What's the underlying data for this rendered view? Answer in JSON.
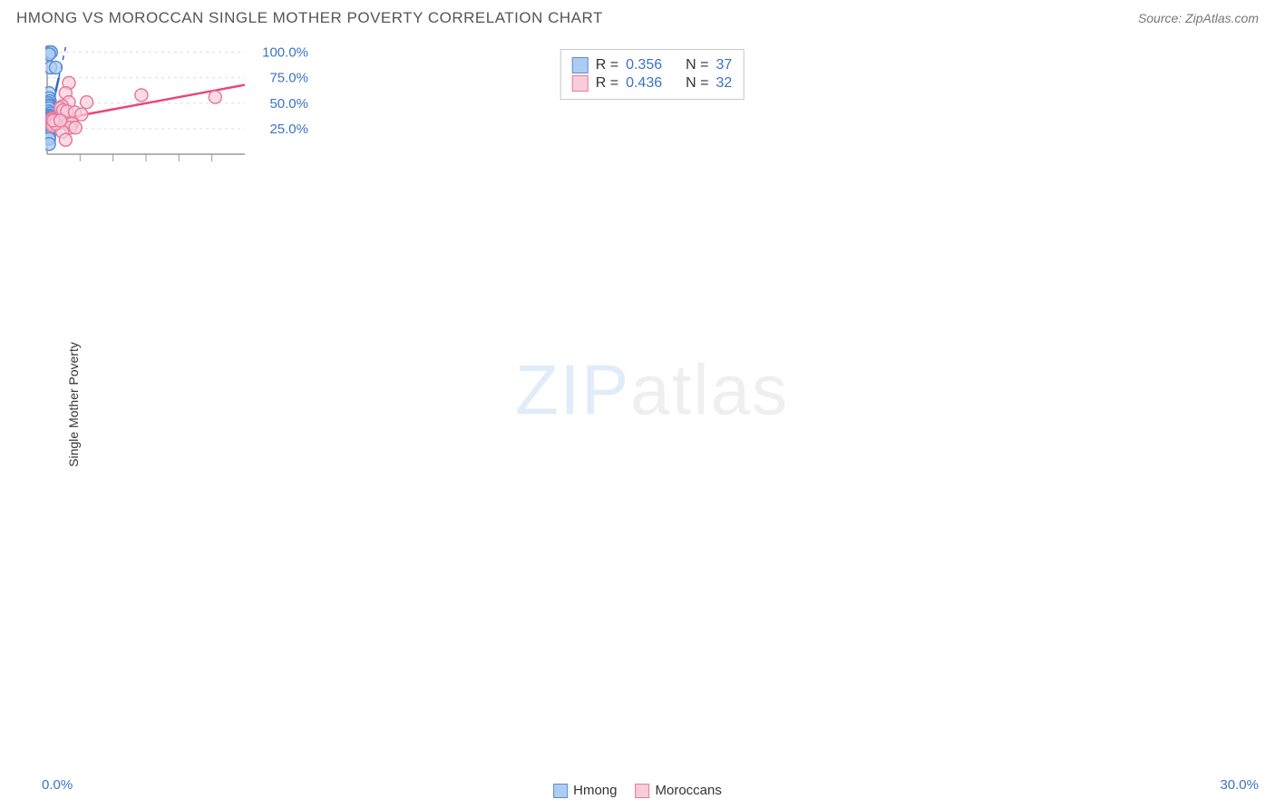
{
  "header": {
    "title": "HMONG VS MOROCCAN SINGLE MOTHER POVERTY CORRELATION CHART",
    "source": "Source: ZipAtlas.com"
  },
  "chart": {
    "type": "scatter",
    "ylabel": "Single Mother Poverty",
    "watermark_main": "ZIP",
    "watermark_sub": "atlas",
    "background_color": "#ffffff",
    "grid_color": "#dcdcdc",
    "axis_color": "#9a9a9a",
    "xlim": [
      0,
      30
    ],
    "ylim": [
      0,
      105
    ],
    "x_tick_step": 5,
    "y_ticks": [
      25,
      50,
      75,
      100
    ],
    "y_tick_labels": [
      "25.0%",
      "50.0%",
      "75.0%",
      "100.0%"
    ],
    "x_origin_label": "0.0%",
    "x_max_label": "30.0%",
    "label_color": "#3b72c4",
    "title_color": "#555555",
    "marker_radius": 7,
    "marker_stroke_width": 1.5,
    "trend_line_width": 2.5,
    "series": [
      {
        "name": "Hmong",
        "fill": "#aeccf2",
        "stroke": "#5a8fd6",
        "line_color": "#2f68c8",
        "points": [
          [
            0.3,
            100
          ],
          [
            0.6,
            100
          ],
          [
            0.3,
            98
          ],
          [
            0.5,
            85
          ],
          [
            1.3,
            85
          ],
          [
            0.3,
            60
          ],
          [
            0.3,
            55
          ],
          [
            0.4,
            52
          ],
          [
            0.3,
            50
          ],
          [
            0.35,
            48
          ],
          [
            0.3,
            47
          ],
          [
            0.3,
            45
          ],
          [
            0.25,
            42
          ],
          [
            0.4,
            40
          ],
          [
            0.3,
            38
          ],
          [
            0.2,
            37
          ],
          [
            0.3,
            36
          ],
          [
            0.3,
            35
          ],
          [
            0.25,
            34
          ],
          [
            0.35,
            34
          ],
          [
            0.3,
            33
          ],
          [
            0.4,
            33
          ],
          [
            0.3,
            32
          ],
          [
            0.8,
            33
          ],
          [
            0.5,
            31
          ],
          [
            0.35,
            30
          ],
          [
            0.3,
            30
          ],
          [
            0.3,
            28
          ],
          [
            0.3,
            27
          ],
          [
            0.35,
            27
          ],
          [
            0.3,
            24
          ],
          [
            0.3,
            22
          ],
          [
            0.3,
            20
          ],
          [
            0.3,
            18
          ],
          [
            0.3,
            17
          ],
          [
            0.3,
            15
          ],
          [
            0.3,
            10
          ]
        ],
        "trend": {
          "x1": 0.2,
          "y1": 30,
          "x2": 2.8,
          "y2": 105,
          "dashed_above_y": 75
        }
      },
      {
        "name": "Moroccans",
        "fill": "#f6cdd8",
        "stroke": "#e77aa0",
        "line_color": "#e9467e",
        "points": [
          [
            3.3,
            70
          ],
          [
            2.8,
            60
          ],
          [
            14.3,
            58
          ],
          [
            25.5,
            56
          ],
          [
            3.3,
            51
          ],
          [
            6.0,
            51
          ],
          [
            2.3,
            47
          ],
          [
            2.0,
            45
          ],
          [
            2.4,
            43
          ],
          [
            3.0,
            42
          ],
          [
            4.2,
            41
          ],
          [
            5.2,
            39
          ],
          [
            0.8,
            35
          ],
          [
            0.6,
            34
          ],
          [
            0.7,
            34
          ],
          [
            1.0,
            33
          ],
          [
            1.3,
            34
          ],
          [
            1.5,
            33
          ],
          [
            1.9,
            33
          ],
          [
            1.2,
            32
          ],
          [
            2.3,
            31
          ],
          [
            3.2,
            30
          ],
          [
            3.8,
            30
          ],
          [
            1.0,
            29
          ],
          [
            0.8,
            28
          ],
          [
            3.5,
            26
          ],
          [
            4.3,
            26
          ],
          [
            2.3,
            22
          ],
          [
            1.3,
            30
          ],
          [
            0.9,
            33
          ],
          [
            2.8,
            14
          ],
          [
            2.0,
            33
          ]
        ],
        "trend": {
          "x1": 0,
          "y1": 32,
          "x2": 30,
          "y2": 68,
          "dashed_above_y": 999
        }
      }
    ],
    "stats_box": [
      {
        "swatch_fill": "#aeccf2",
        "swatch_stroke": "#5a8fd6",
        "r_label": "R =",
        "r_val": "0.356",
        "n_label": "N =",
        "n_val": "37"
      },
      {
        "swatch_fill": "#f6cdd8",
        "swatch_stroke": "#e77aa0",
        "r_label": "R =",
        "r_val": "0.436",
        "n_label": "N =",
        "n_val": "32"
      }
    ],
    "bottom_legend": [
      {
        "swatch_fill": "#aeccf2",
        "swatch_stroke": "#5a8fd6",
        "label": "Hmong"
      },
      {
        "swatch_fill": "#f6cdd8",
        "swatch_stroke": "#e77aa0",
        "label": "Moroccans"
      }
    ]
  }
}
